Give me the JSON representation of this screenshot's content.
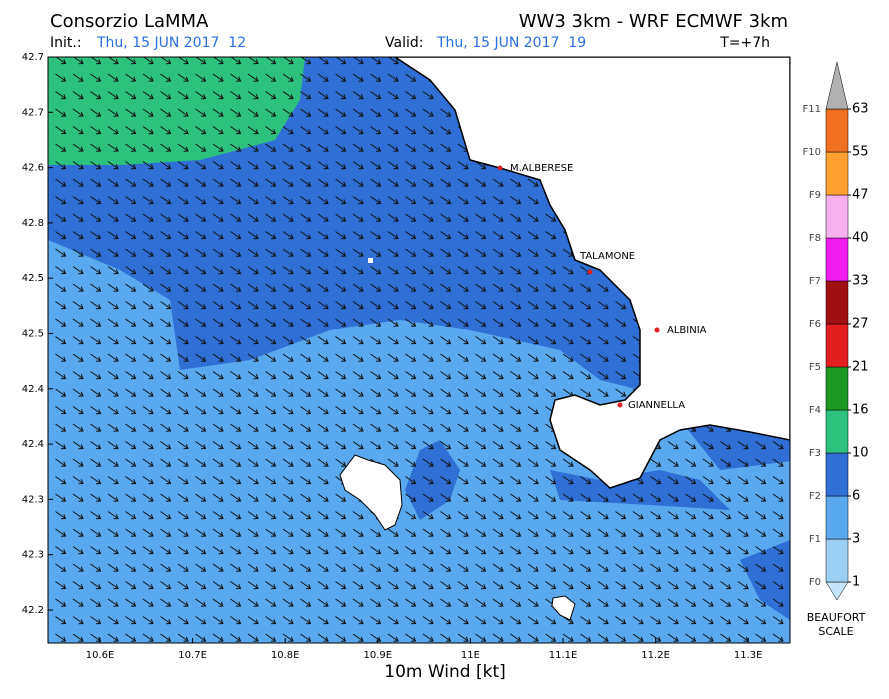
{
  "header": {
    "title": "Consorzio LaMMA",
    "model": "WW3 3km - WRF ECMWF 3km",
    "init_label": "Init.:",
    "init": "Thu, 15 JUN 2017  12",
    "valid_label": "Valid:",
    "valid": "Thu, 15 JUN 2017  19",
    "step": "T=+7h"
  },
  "map": {
    "lat_ticks": [
      "42.7",
      "42.7",
      "42.6",
      "42.8",
      "42.5",
      "42.5",
      "42.4",
      "42.4",
      "42.3",
      "42.3",
      "42.2"
    ],
    "lon_ticks": [
      "10.6E",
      "10.7E",
      "10.8E",
      "10.9E",
      "11E",
      "11.1E",
      "11.2E",
      "11.3E"
    ],
    "places": [
      "M.ALBERESE",
      "TALAMONE",
      "ALBINIA",
      "GIANNELLA"
    ],
    "x_label": "10m Wind [kt]"
  },
  "legend": {
    "beaufort": [
      "F0",
      "F1",
      "F2",
      "F3",
      "F4",
      "F5",
      "F6",
      "F7",
      "F8",
      "F9",
      "F10",
      "F11"
    ],
    "values": [
      1,
      3,
      6,
      10,
      16,
      21,
      27,
      33,
      40,
      47,
      55,
      63
    ],
    "colors": [
      "#c4e4fa",
      "#9ccff4",
      "#5aa8ee",
      "#2f6fd6",
      "#2cc27e",
      "#1a9a22",
      "#e31e1e",
      "#a01010",
      "#f21cf0",
      "#f7b0ef",
      "#ffa030",
      "#f07020",
      "#b0b0b0"
    ],
    "title": "BEAUFORT SCALE"
  }
}
